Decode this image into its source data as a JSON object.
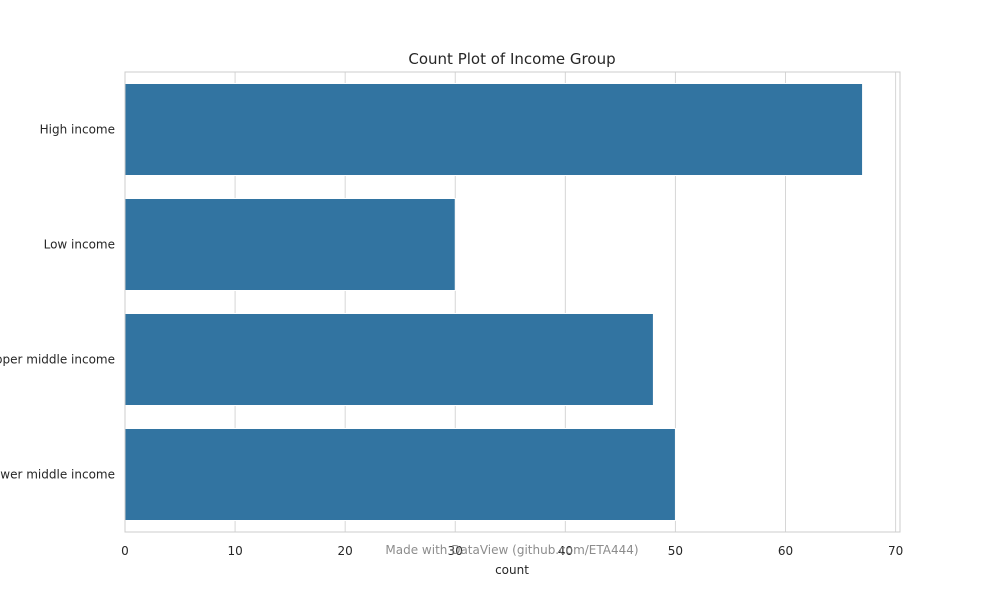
{
  "chart_data": {
    "type": "bar",
    "orientation": "horizontal",
    "title": "Count Plot of Income Group",
    "xlabel": "count",
    "ylabel": "",
    "categories": [
      "High income",
      "Low income",
      "Upper middle income",
      "Lower middle income"
    ],
    "values": [
      67,
      30,
      48,
      50
    ],
    "xlim": [
      0,
      70.4
    ],
    "xticks": [
      0,
      10,
      20,
      30,
      40,
      50,
      60,
      70
    ],
    "grid": true,
    "bar_color": "#3274a1"
  },
  "watermark": "Made with DataView (github.com/ETA444)"
}
